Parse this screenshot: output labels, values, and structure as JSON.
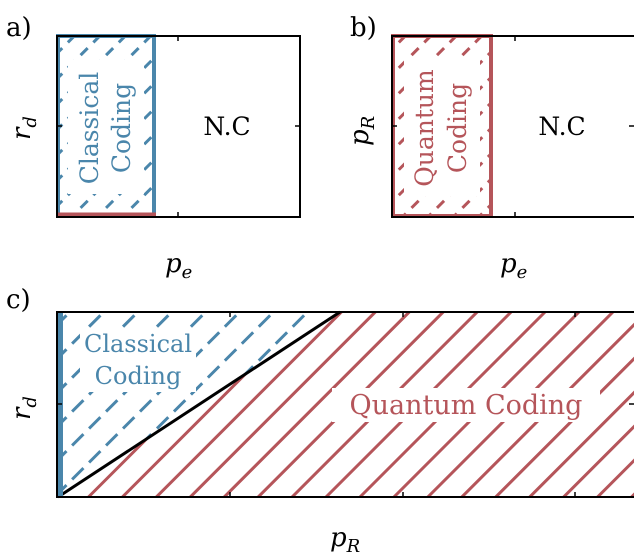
{
  "colors": {
    "classical": "#4a86ab",
    "quantum": "#b5555a",
    "axis": "#000000"
  },
  "panels": {
    "a": {
      "label": "a)",
      "xlabel": {
        "main": "p",
        "sub": "e"
      },
      "ylabel": {
        "main": "r",
        "sub": "d"
      },
      "region_line1": "Classical",
      "region_line2": "Coding",
      "nc_label": "N.C"
    },
    "b": {
      "label": "b)",
      "xlabel": {
        "main": "p",
        "sub": "e"
      },
      "ylabel": {
        "main": "p",
        "sub": "R"
      },
      "region_line1": "Quantum",
      "region_line2": "Coding",
      "nc_label": "N.C"
    },
    "c": {
      "label": "c)",
      "xlabel": {
        "main": "p",
        "sub": "R"
      },
      "ylabel": {
        "main": "r",
        "sub": "d"
      },
      "classical_line1": "Classical",
      "classical_line2": "Coding",
      "quantum_label": "Quantum Coding"
    }
  }
}
